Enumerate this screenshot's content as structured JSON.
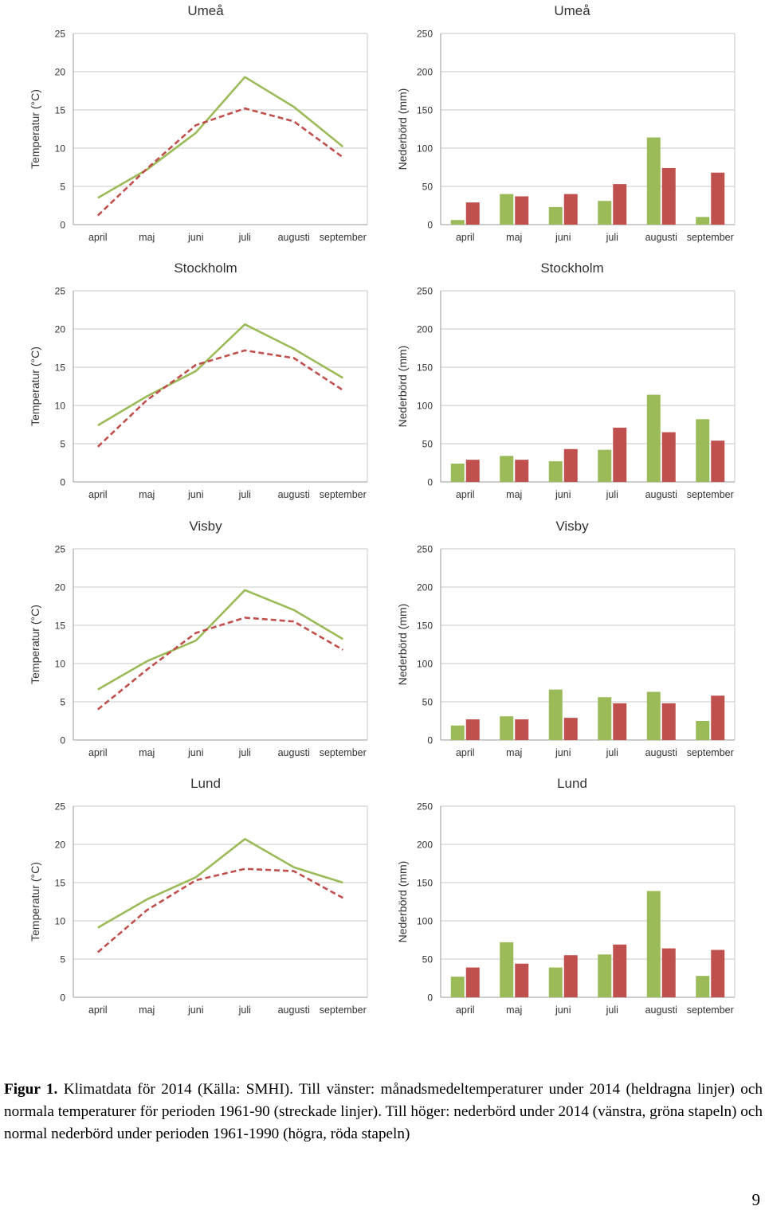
{
  "colors": {
    "green": "#9bbb59",
    "red": "#c0504d",
    "grid": "#c8c8c8",
    "axis": "#999999"
  },
  "chart_data": [
    {
      "type": "line",
      "city": "Umeå",
      "title": "Umeå",
      "ylabel": "Temperatur (°C)",
      "categories": [
        "april",
        "maj",
        "juni",
        "juli",
        "augusti",
        "september"
      ],
      "ylim": [
        0,
        25
      ],
      "yticks": [
        0,
        5,
        10,
        15,
        20,
        25
      ],
      "series": [
        {
          "name": "2014",
          "style": "solid",
          "color": "green",
          "values": [
            3.5,
            7.2,
            12.0,
            19.3,
            15.4,
            10.2
          ]
        },
        {
          "name": "1961-90",
          "style": "dashed",
          "color": "red",
          "values": [
            1.2,
            7.3,
            13.0,
            15.2,
            13.5,
            8.8
          ]
        }
      ]
    },
    {
      "type": "bar",
      "city": "Umeå",
      "title": "Umeå",
      "ylabel": "Nederbörd (mm)",
      "categories": [
        "april",
        "maj",
        "juni",
        "juli",
        "augusti",
        "september"
      ],
      "ylim": [
        0,
        250
      ],
      "yticks": [
        0,
        50,
        100,
        150,
        200,
        250
      ],
      "series": [
        {
          "name": "2014",
          "color": "green",
          "values": [
            6,
            40,
            23,
            31,
            114,
            10
          ]
        },
        {
          "name": "1961-1990",
          "color": "red",
          "values": [
            29,
            37,
            40,
            53,
            74,
            68
          ]
        }
      ]
    },
    {
      "type": "line",
      "city": "Stockholm",
      "title": "Stockholm",
      "ylabel": "Temperatur (°C)",
      "categories": [
        "april",
        "maj",
        "juni",
        "juli",
        "augusti",
        "september"
      ],
      "ylim": [
        0,
        25
      ],
      "yticks": [
        0,
        5,
        10,
        15,
        20,
        25
      ],
      "series": [
        {
          "name": "2014",
          "style": "solid",
          "color": "green",
          "values": [
            7.4,
            11.2,
            14.5,
            20.6,
            17.4,
            13.6
          ]
        },
        {
          "name": "1961-90",
          "style": "dashed",
          "color": "red",
          "values": [
            4.6,
            10.7,
            15.3,
            17.2,
            16.2,
            12.0
          ]
        }
      ]
    },
    {
      "type": "bar",
      "city": "Stockholm",
      "title": "Stockholm",
      "ylabel": "Nederbörd (mm)",
      "categories": [
        "april",
        "maj",
        "juni",
        "juli",
        "augusti",
        "september"
      ],
      "ylim": [
        0,
        250
      ],
      "yticks": [
        0,
        50,
        100,
        150,
        200,
        250
      ],
      "series": [
        {
          "name": "2014",
          "color": "green",
          "values": [
            24,
            34,
            27,
            42,
            114,
            82
          ]
        },
        {
          "name": "1961-1990",
          "color": "red",
          "values": [
            29,
            29,
            43,
            71,
            65,
            54
          ]
        }
      ]
    },
    {
      "type": "line",
      "city": "Visby",
      "title": "Visby",
      "ylabel": "Temperatur (°C)",
      "categories": [
        "april",
        "maj",
        "juni",
        "juli",
        "augusti",
        "september"
      ],
      "ylim": [
        0,
        25
      ],
      "yticks": [
        0,
        5,
        10,
        15,
        20,
        25
      ],
      "series": [
        {
          "name": "2014",
          "style": "solid",
          "color": "green",
          "values": [
            6.6,
            10.3,
            13.0,
            19.6,
            17.0,
            13.2
          ]
        },
        {
          "name": "1961-90",
          "style": "dashed",
          "color": "red",
          "values": [
            4.0,
            9.2,
            14.0,
            16.0,
            15.5,
            11.8
          ]
        }
      ]
    },
    {
      "type": "bar",
      "city": "Visby",
      "title": "Visby",
      "ylabel": "Nederbörd (mm)",
      "categories": [
        "april",
        "maj",
        "juni",
        "juli",
        "augusti",
        "september"
      ],
      "ylim": [
        0,
        250
      ],
      "yticks": [
        0,
        50,
        100,
        150,
        200,
        250
      ],
      "series": [
        {
          "name": "2014",
          "color": "green",
          "values": [
            19,
            31,
            66,
            56,
            63,
            25
          ]
        },
        {
          "name": "1961-1990",
          "color": "red",
          "values": [
            27,
            27,
            29,
            48,
            48,
            58
          ]
        }
      ]
    },
    {
      "type": "line",
      "city": "Lund",
      "title": "Lund",
      "ylabel": "Temperatur (°C)",
      "categories": [
        "april",
        "maj",
        "juni",
        "juli",
        "augusti",
        "september"
      ],
      "ylim": [
        0,
        25
      ],
      "yticks": [
        0,
        5,
        10,
        15,
        20,
        25
      ],
      "series": [
        {
          "name": "2014",
          "style": "solid",
          "color": "green",
          "values": [
            9.1,
            12.8,
            15.7,
            20.7,
            17.0,
            15.0
          ]
        },
        {
          "name": "1961-90",
          "style": "dashed",
          "color": "red",
          "values": [
            5.9,
            11.4,
            15.3,
            16.8,
            16.5,
            13.0
          ]
        }
      ]
    },
    {
      "type": "bar",
      "city": "Lund",
      "title": "Lund",
      "ylabel": "Nederbörd (mm)",
      "categories": [
        "april",
        "maj",
        "juni",
        "juli",
        "augusti",
        "september"
      ],
      "ylim": [
        0,
        250
      ],
      "yticks": [
        0,
        50,
        100,
        150,
        200,
        250
      ],
      "series": [
        {
          "name": "2014",
          "color": "green",
          "values": [
            27,
            72,
            39,
            56,
            139,
            28
          ]
        },
        {
          "name": "1961-1990",
          "color": "red",
          "values": [
            39,
            44,
            55,
            69,
            64,
            62
          ]
        }
      ]
    }
  ],
  "caption": {
    "label": "Figur 1.",
    "text": " Klimatdata för 2014 (Källa: SMHI). Till vänster: månadsmedeltemperaturer under 2014 (heldragna linjer) och normala temperaturer för perioden 1961-90 (streckade linjer). Till höger: nederbörd under 2014 (vänstra, gröna stapeln) och normal nederbörd under perioden 1961-1990 (högra, röda stapeln)"
  },
  "page_number": "9"
}
